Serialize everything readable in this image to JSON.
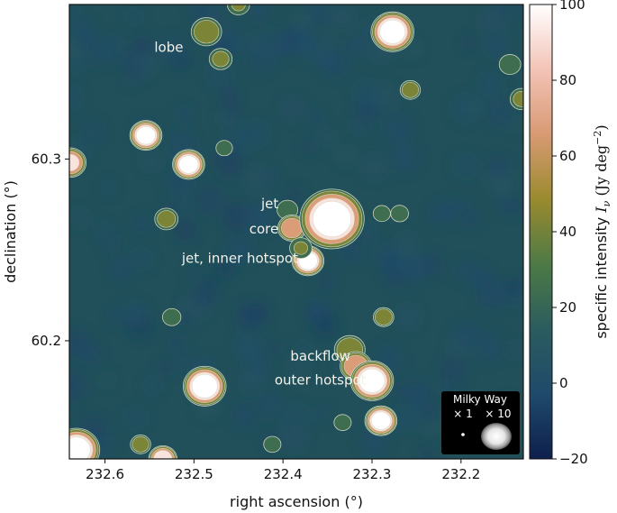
{
  "chart_data": {
    "type": "heatmap",
    "title": "",
    "xlabel": "right ascension (°)",
    "ylabel": "declination (°)",
    "x_ticks": [
      232.6,
      232.5,
      232.4,
      232.3,
      232.2
    ],
    "x_tick_labels": [
      "232.6",
      "232.5",
      "232.4",
      "232.3",
      "232.2"
    ],
    "xlim": [
      232.64,
      232.13
    ],
    "y_ticks": [
      60.3,
      60.2
    ],
    "y_tick_labels": [
      "60.3",
      "60.2"
    ],
    "ylim": [
      60.135,
      60.385
    ],
    "colorbar": {
      "label_prefix": "specific intensity ",
      "label_symbol": "I",
      "label_subscript": "ν",
      "label_units_open": " (Jy deg",
      "label_exponent": "−2",
      "label_units_close": ")",
      "range": [
        -20,
        100
      ],
      "ticks": [
        -20,
        0,
        20,
        40,
        60,
        80,
        100
      ],
      "tick_labels": [
        "−20",
        "0",
        "20",
        "40",
        "60",
        "80",
        "100"
      ],
      "colors": [
        "#0e1f4d",
        "#1f4a6b",
        "#2b5c5e",
        "#4d7a46",
        "#9a8a2e",
        "#d89a73",
        "#f3c3b7",
        "#ffffff"
      ]
    },
    "background_color": "#21505a",
    "contour_color": "#d8dcc8",
    "sources": [
      {
        "ra": 232.486,
        "dec": 60.37,
        "peak": 45,
        "size": 0.0045
      },
      {
        "ra": 232.47,
        "dec": 60.355,
        "peak": 35,
        "size": 0.0035
      },
      {
        "ra": 232.395,
        "dec": 60.272,
        "peak": 22,
        "size": 0.0035
      },
      {
        "ra": 232.39,
        "dec": 60.262,
        "peak": 75,
        "size": 0.004
      },
      {
        "ra": 232.372,
        "dec": 60.244,
        "peak": 100,
        "size": 0.0045
      },
      {
        "ra": 232.38,
        "dec": 60.251,
        "peak": 30,
        "size": 0.0035
      },
      {
        "ra": 232.345,
        "dec": 60.267,
        "peak": 100,
        "size": 0.009
      },
      {
        "ra": 232.325,
        "dec": 60.195,
        "peak": 50,
        "size": 0.0045
      },
      {
        "ra": 232.318,
        "dec": 60.186,
        "peak": 75,
        "size": 0.0045
      },
      {
        "ra": 232.3,
        "dec": 60.178,
        "peak": 100,
        "size": 0.006
      },
      {
        "ra": 232.277,
        "dec": 60.37,
        "peak": 100,
        "size": 0.006
      },
      {
        "ra": 232.554,
        "dec": 60.313,
        "peak": 100,
        "size": 0.0045
      },
      {
        "ra": 232.506,
        "dec": 60.297,
        "peak": 100,
        "size": 0.0045
      },
      {
        "ra": 232.639,
        "dec": 60.298,
        "peak": 80,
        "size": 0.0045
      },
      {
        "ra": 232.488,
        "dec": 60.175,
        "peak": 100,
        "size": 0.006
      },
      {
        "ra": 232.632,
        "dec": 60.14,
        "peak": 100,
        "size": 0.0065
      },
      {
        "ra": 232.29,
        "dec": 60.156,
        "peak": 100,
        "size": 0.0045
      },
      {
        "ra": 232.535,
        "dec": 60.135,
        "peak": 90,
        "size": 0.004
      },
      {
        "ra": 232.56,
        "dec": 60.143,
        "peak": 45,
        "size": 0.003
      },
      {
        "ra": 232.531,
        "dec": 60.267,
        "peak": 40,
        "size": 0.0035
      },
      {
        "ra": 232.287,
        "dec": 60.213,
        "peak": 50,
        "size": 0.003
      },
      {
        "ra": 232.257,
        "dec": 60.338,
        "peak": 45,
        "size": 0.003
      },
      {
        "ra": 232.132,
        "dec": 60.333,
        "peak": 35,
        "size": 0.0035
      },
      {
        "ra": 232.145,
        "dec": 60.352,
        "peak": 25,
        "size": 0.0035
      },
      {
        "ra": 232.525,
        "dec": 60.213,
        "peak": 25,
        "size": 0.003
      },
      {
        "ra": 232.45,
        "dec": 60.385,
        "peak": 30,
        "size": 0.0035
      },
      {
        "ra": 232.412,
        "dec": 60.143,
        "peak": 20,
        "size": 0.003
      },
      {
        "ra": 232.333,
        "dec": 60.155,
        "peak": 20,
        "size": 0.003
      },
      {
        "ra": 232.269,
        "dec": 60.27,
        "peak": 22,
        "size": 0.003
      },
      {
        "ra": 232.289,
        "dec": 60.27,
        "peak": 20,
        "size": 0.003
      },
      {
        "ra": 232.466,
        "dec": 60.306,
        "peak": 18,
        "size": 0.003
      }
    ],
    "annotations": [
      {
        "text": "lobe",
        "ra": 232.512,
        "dec": 60.359,
        "anchor": "end"
      },
      {
        "text": "jet",
        "ra": 232.405,
        "dec": 60.273,
        "anchor": "end"
      },
      {
        "text": "core",
        "ra": 232.405,
        "dec": 60.259,
        "anchor": "end"
      },
      {
        "text": "jet, inner hotspot",
        "ra": 232.383,
        "dec": 60.243,
        "anchor": "end"
      },
      {
        "text": "backflow",
        "ra": 232.358,
        "dec": 60.189,
        "anchor": "middle"
      },
      {
        "text": "outer hotspot",
        "ra": 232.358,
        "dec": 60.176,
        "anchor": "middle"
      }
    ],
    "inset": {
      "title": "Milky Way",
      "labels": [
        "× 1",
        "× 10"
      ]
    }
  }
}
